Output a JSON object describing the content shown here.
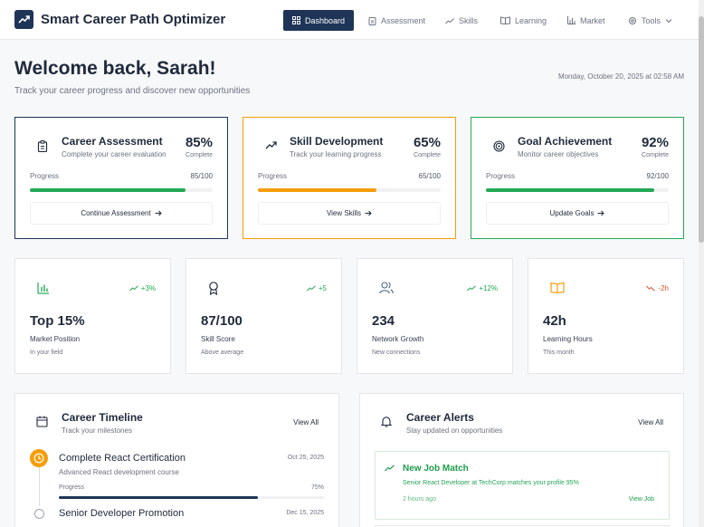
{
  "app": {
    "title": "Smart Career Path Optimizer"
  },
  "nav": {
    "dashboard": "Dashboard",
    "assessment": "Assessment",
    "skills": "Skills",
    "learning": "Learning",
    "market": "Market",
    "tools": "Tools"
  },
  "header": {
    "welcome": "Welcome back, Sarah!",
    "subtitle": "Track your career progress and discover new opportunities",
    "datetime": "Monday, October 20, 2025 at 02:58 AM"
  },
  "progress_cards": [
    {
      "title": "Career Assessment",
      "subtitle": "Complete your career evaluation",
      "percent": "85%",
      "complete_label": "Complete",
      "progress_label": "Progress",
      "progress_value": "85/100",
      "progress_fraction": 0.85,
      "button": "Continue Assessment",
      "color": "#22a954"
    },
    {
      "title": "Skill Development",
      "subtitle": "Track your learning progress",
      "percent": "65%",
      "complete_label": "Complete",
      "progress_label": "Progress",
      "progress_value": "65/100",
      "progress_fraction": 0.65,
      "button": "View Skills",
      "color": "#f59e0b"
    },
    {
      "title": "Goal Achievement",
      "subtitle": "Monitor career objectives",
      "percent": "92%",
      "complete_label": "Complete",
      "progress_label": "Progress",
      "progress_value": "92/100",
      "progress_fraction": 0.92,
      "button": "Update Goals",
      "color": "#22a954"
    }
  ],
  "stats": [
    {
      "value": "Top 15%",
      "label": "Market Position",
      "sub": "In your field",
      "trend": "+3%",
      "trend_color": "#22a954"
    },
    {
      "value": "87/100",
      "label": "Skill Score",
      "sub": "Above average",
      "trend": "+5",
      "trend_color": "#22a954"
    },
    {
      "value": "234",
      "label": "Network Growth",
      "sub": "New connections",
      "trend": "+12%",
      "trend_color": "#22a954"
    },
    {
      "value": "42h",
      "label": "Learning Hours",
      "sub": "This month",
      "trend": "-2h",
      "trend_color": "#e0502b"
    }
  ],
  "timeline": {
    "title": "Career Timeline",
    "subtitle": "Track your milestones",
    "view_all": "View All",
    "items": [
      {
        "title": "Complete React Certification",
        "date": "Oct 25, 2025",
        "desc": "Advanced React development course",
        "progress_label": "Progress",
        "progress_value": "75%",
        "progress_fraction": 0.75
      },
      {
        "title": "Senior Developer Promotion",
        "date": "Dec 15, 2025"
      }
    ]
  },
  "alerts": {
    "title": "Career Alerts",
    "subtitle": "Stay updated on opportunities",
    "view_all": "View All",
    "items": [
      {
        "title": "New Job Match",
        "desc": "Senior React Developer at TechCorp matches your profile 95%",
        "time": "2 hours ago",
        "link": "View Job"
      }
    ]
  },
  "colors": {
    "primary": "#1e3557",
    "success": "#22a954",
    "warning": "#f59e0b",
    "danger": "#e0502b"
  }
}
